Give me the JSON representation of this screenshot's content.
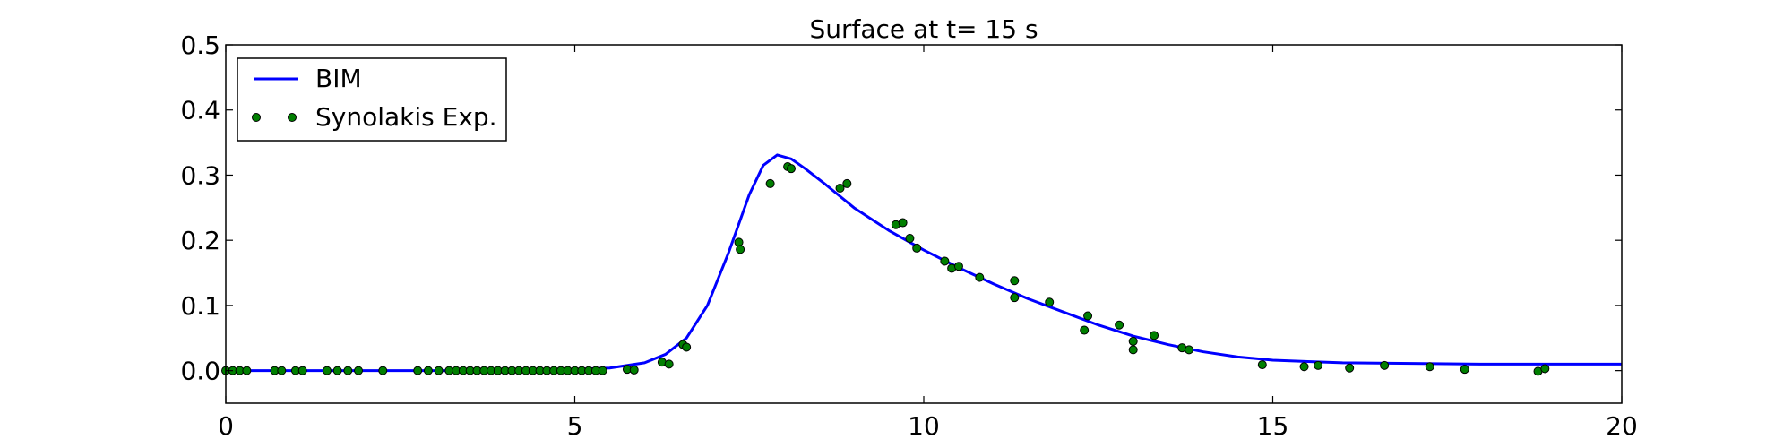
{
  "chart_data": {
    "type": "line",
    "title": "Surface at t= 15 s",
    "xlabel": "",
    "ylabel": "",
    "xlim": [
      0,
      20
    ],
    "ylim": [
      -0.05,
      0.5
    ],
    "xticks": [
      0,
      5,
      10,
      15,
      20
    ],
    "yticks": [
      0.0,
      0.1,
      0.2,
      0.3,
      0.4,
      0.5
    ],
    "xtick_labels": [
      "0",
      "5",
      "10",
      "15",
      "20"
    ],
    "ytick_labels": [
      "0.0",
      "0.1",
      "0.2",
      "0.3",
      "0.4",
      "0.5"
    ],
    "grid": false,
    "legend_position": "upper-left",
    "series": [
      {
        "name": "BIM",
        "kind": "line",
        "color": "#0000ff",
        "x": [
          0,
          1,
          2,
          3,
          4,
          5,
          5.5,
          6.0,
          6.3,
          6.6,
          6.9,
          7.2,
          7.5,
          7.7,
          7.9,
          8.1,
          8.3,
          8.6,
          9.0,
          9.5,
          10.0,
          10.5,
          11.0,
          11.5,
          12.0,
          12.5,
          13.0,
          13.5,
          14.0,
          14.5,
          15.0,
          15.5,
          16.0,
          17.0,
          18.0,
          19.0,
          20.0
        ],
        "y": [
          0.0,
          0.0,
          0.0,
          0.0,
          0.0,
          0.002,
          0.004,
          0.012,
          0.025,
          0.05,
          0.1,
          0.18,
          0.27,
          0.315,
          0.331,
          0.325,
          0.31,
          0.285,
          0.25,
          0.215,
          0.185,
          0.158,
          0.133,
          0.11,
          0.09,
          0.07,
          0.053,
          0.04,
          0.029,
          0.021,
          0.016,
          0.014,
          0.012,
          0.011,
          0.01,
          0.01,
          0.01
        ]
      },
      {
        "name": "Synolakis Exp.",
        "kind": "scatter",
        "color": "#007f00",
        "x": [
          0.0,
          0.1,
          0.2,
          0.3,
          0.7,
          0.8,
          1.0,
          1.1,
          1.45,
          1.6,
          1.75,
          1.9,
          2.25,
          2.75,
          2.9,
          3.05,
          3.2,
          3.3,
          3.4,
          3.5,
          3.6,
          3.7,
          3.8,
          3.9,
          4.0,
          4.1,
          4.2,
          4.3,
          4.4,
          4.5,
          4.6,
          4.7,
          4.8,
          4.9,
          5.0,
          5.1,
          5.2,
          5.3,
          5.4,
          5.75,
          5.85,
          6.25,
          6.35,
          6.55,
          6.6,
          7.35,
          7.37,
          7.8,
          8.05,
          8.1,
          8.8,
          8.9,
          9.6,
          9.7,
          9.8,
          9.9,
          10.3,
          10.4,
          10.5,
          10.8,
          11.3,
          11.3,
          11.8,
          12.3,
          12.35,
          12.8,
          13.0,
          13.0,
          13.3,
          13.7,
          13.8,
          14.85,
          15.45,
          15.65,
          16.1,
          16.6,
          17.25,
          17.75,
          18.8,
          18.9
        ],
        "y": [
          0.0,
          0.0,
          0.0,
          0.0,
          0.0,
          0.0,
          0.0,
          0.0,
          0.0,
          0.0,
          0.0,
          0.0,
          0.0,
          0.0,
          0.0,
          0.0,
          0.0,
          0.0,
          0.0,
          0.0,
          0.0,
          0.0,
          0.0,
          0.0,
          0.0,
          0.0,
          0.0,
          0.0,
          0.0,
          0.0,
          0.0,
          0.0,
          0.0,
          0.0,
          0.0,
          0.0,
          0.0,
          0.0,
          0.0,
          0.002,
          0.001,
          0.013,
          0.01,
          0.04,
          0.036,
          0.197,
          0.186,
          0.287,
          0.313,
          0.31,
          0.28,
          0.287,
          0.224,
          0.227,
          0.203,
          0.188,
          0.168,
          0.157,
          0.16,
          0.143,
          0.138,
          0.112,
          0.105,
          0.062,
          0.084,
          0.07,
          0.045,
          0.032,
          0.054,
          0.035,
          0.032,
          0.009,
          0.006,
          0.008,
          0.004,
          0.008,
          0.006,
          0.002,
          -0.001,
          0.003
        ]
      }
    ]
  }
}
